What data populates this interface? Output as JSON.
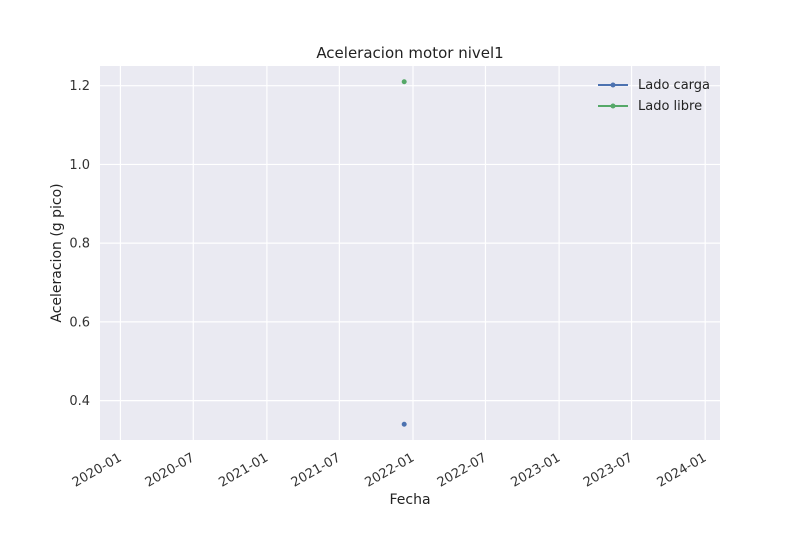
{
  "chart_data": {
    "type": "scatter",
    "title": "Aceleracion motor nivel1",
    "xlabel": "Fecha",
    "ylabel": "Aceleracion (g pico)",
    "x_ticks": [
      "2020-01",
      "2020-07",
      "2021-01",
      "2021-07",
      "2022-01",
      "2022-07",
      "2023-01",
      "2023-07",
      "2024-01"
    ],
    "y_ticks": [
      "0.4",
      "0.6",
      "0.8",
      "1.0",
      "1.2"
    ],
    "xlim": [
      "2019-11-11",
      "2024-02-07"
    ],
    "ylim": [
      0.3,
      1.25
    ],
    "grid": true,
    "legend": "top-right",
    "series": [
      {
        "name": "Lado carga",
        "color": "#4c72b0",
        "points": [
          {
            "x": "2021-12-10",
            "y": 0.34
          }
        ]
      },
      {
        "name": "Lado libre",
        "color": "#55a868",
        "points": [
          {
            "x": "2021-12-10",
            "y": 1.21
          }
        ]
      }
    ]
  }
}
